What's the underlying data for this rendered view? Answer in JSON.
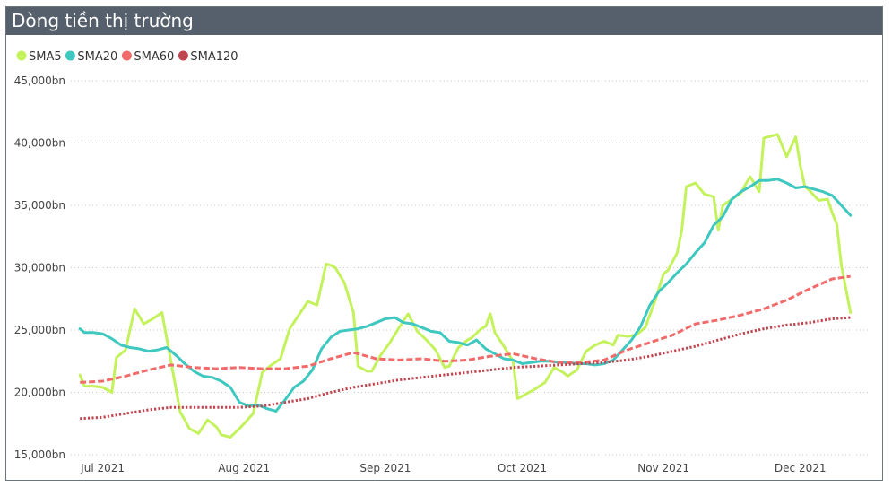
{
  "header": {
    "title": "Dòng tiền thị trường"
  },
  "chart_data": {
    "type": "line",
    "title": "Dòng tiền thị trường",
    "xlabel": "",
    "ylabel": "",
    "ylim": [
      15000,
      45000
    ],
    "y_ticks": [
      {
        "value": 15000,
        "label": "15,000bn"
      },
      {
        "value": 20000,
        "label": "20,000bn"
      },
      {
        "value": 25000,
        "label": "25,000bn"
      },
      {
        "value": 30000,
        "label": "30,000bn"
      },
      {
        "value": 35000,
        "label": "35,000bn"
      },
      {
        "value": 40000,
        "label": "40,000bn"
      },
      {
        "value": 45000,
        "label": "45,000bn"
      }
    ],
    "xlim": [
      "2021-06-24",
      "2021-12-16"
    ],
    "x_ticks": [
      {
        "value": "2021-07-01",
        "label": "Jul 2021"
      },
      {
        "value": "2021-08-01",
        "label": "Aug 2021"
      },
      {
        "value": "2021-09-01",
        "label": "Sep 2021"
      },
      {
        "value": "2021-10-01",
        "label": "Oct 2021"
      },
      {
        "value": "2021-11-01",
        "label": "Nov 2021"
      },
      {
        "value": "2021-12-01",
        "label": "Dec 2021"
      }
    ],
    "grid": "horizontal-dotted",
    "legend_position": "top-left",
    "series": [
      {
        "name": "SMA5",
        "color": "#c4f25c",
        "style": "solid",
        "x": [
          "2021-06-26",
          "2021-06-27",
          "2021-06-29",
          "2021-07-01",
          "2021-07-03",
          "2021-07-04",
          "2021-07-06",
          "2021-07-08",
          "2021-07-10",
          "2021-07-12",
          "2021-07-14",
          "2021-07-16",
          "2021-07-18",
          "2021-07-19",
          "2021-07-20",
          "2021-07-22",
          "2021-07-24",
          "2021-07-26",
          "2021-07-27",
          "2021-07-29",
          "2021-07-31",
          "2021-08-01",
          "2021-08-03",
          "2021-08-05",
          "2021-08-07",
          "2021-08-09",
          "2021-08-11",
          "2021-08-13",
          "2021-08-15",
          "2021-08-17",
          "2021-08-19",
          "2021-08-20",
          "2021-08-21",
          "2021-08-23",
          "2021-08-25",
          "2021-08-26",
          "2021-08-28",
          "2021-08-29",
          "2021-08-31",
          "2021-09-02",
          "2021-09-04",
          "2021-09-06",
          "2021-09-08",
          "2021-09-10",
          "2021-09-12",
          "2021-09-14",
          "2021-09-15",
          "2021-09-17",
          "2021-09-19",
          "2021-09-20",
          "2021-09-22",
          "2021-09-23",
          "2021-09-24",
          "2021-09-25",
          "2021-09-27",
          "2021-09-29",
          "2021-09-30",
          "2021-10-02",
          "2021-10-04",
          "2021-10-06",
          "2021-10-08",
          "2021-10-10",
          "2021-10-11",
          "2021-10-13",
          "2021-10-15",
          "2021-10-17",
          "2021-10-19",
          "2021-10-21",
          "2021-10-22",
          "2021-10-24",
          "2021-10-26",
          "2021-10-28",
          "2021-10-30",
          "2021-11-01",
          "2021-11-02",
          "2021-11-04",
          "2021-11-05",
          "2021-11-06",
          "2021-11-08",
          "2021-11-10",
          "2021-11-12",
          "2021-11-13",
          "2021-11-14",
          "2021-11-16",
          "2021-11-18",
          "2021-11-19",
          "2021-11-20",
          "2021-11-22",
          "2021-11-23",
          "2021-11-24",
          "2021-11-25",
          "2021-11-26",
          "2021-11-28",
          "2021-11-30",
          "2021-12-01",
          "2021-12-02",
          "2021-12-03",
          "2021-12-05",
          "2021-12-07",
          "2021-12-08",
          "2021-12-09",
          "2021-12-10",
          "2021-12-11",
          "2021-12-12"
        ],
        "values": [
          21400,
          20500,
          20500,
          20400,
          20000,
          22800,
          23400,
          26700,
          25500,
          25900,
          26400,
          22400,
          18400,
          17800,
          17100,
          16700,
          17800,
          17200,
          16600,
          16400,
          17100,
          17500,
          18300,
          21600,
          22200,
          22700,
          25100,
          26200,
          27300,
          27000,
          30300,
          30200,
          30000,
          28800,
          26400,
          22100,
          21700,
          21700,
          23000,
          24000,
          25200,
          26300,
          24900,
          24200,
          23400,
          22000,
          22100,
          23600,
          24200,
          24400,
          25100,
          25300,
          26300,
          24800,
          23700,
          22500,
          19500,
          19900,
          20300,
          20800,
          22000,
          21600,
          21300,
          21800,
          23300,
          23800,
          24100,
          23800,
          24600,
          24500,
          24600,
          25200,
          27200,
          29500,
          29800,
          31200,
          33000,
          36500,
          36800,
          35900,
          35700,
          33000,
          35000,
          35500,
          36000,
          36700,
          37300,
          36100,
          40400,
          40500,
          40600,
          40700,
          38900,
          40500,
          38200,
          36500,
          36200,
          35400,
          35500,
          34400,
          33500,
          30200,
          28300,
          26400
        ]
      },
      {
        "name": "SMA20",
        "color": "#3ec8c0",
        "style": "solid",
        "x": [
          "2021-06-26",
          "2021-06-27",
          "2021-06-29",
          "2021-07-01",
          "2021-07-03",
          "2021-07-05",
          "2021-07-07",
          "2021-07-09",
          "2021-07-11",
          "2021-07-13",
          "2021-07-15",
          "2021-07-17",
          "2021-07-19",
          "2021-07-21",
          "2021-07-23",
          "2021-07-25",
          "2021-07-27",
          "2021-07-29",
          "2021-07-31",
          "2021-08-02",
          "2021-08-04",
          "2021-08-06",
          "2021-08-08",
          "2021-08-10",
          "2021-08-12",
          "2021-08-14",
          "2021-08-16",
          "2021-08-18",
          "2021-08-20",
          "2021-08-22",
          "2021-08-24",
          "2021-08-26",
          "2021-08-28",
          "2021-08-30",
          "2021-09-01",
          "2021-09-03",
          "2021-09-05",
          "2021-09-07",
          "2021-09-09",
          "2021-09-11",
          "2021-09-13",
          "2021-09-15",
          "2021-09-17",
          "2021-09-19",
          "2021-09-21",
          "2021-09-23",
          "2021-09-25",
          "2021-09-27",
          "2021-09-29",
          "2021-10-01",
          "2021-10-03",
          "2021-10-05",
          "2021-10-07",
          "2021-10-09",
          "2021-10-11",
          "2021-10-13",
          "2021-10-15",
          "2021-10-17",
          "2021-10-19",
          "2021-10-21",
          "2021-10-23",
          "2021-10-25",
          "2021-10-27",
          "2021-10-29",
          "2021-10-31",
          "2021-11-02",
          "2021-11-04",
          "2021-11-06",
          "2021-11-08",
          "2021-11-10",
          "2021-11-12",
          "2021-11-14",
          "2021-11-16",
          "2021-11-18",
          "2021-11-20",
          "2021-11-22",
          "2021-11-24",
          "2021-11-26",
          "2021-11-28",
          "2021-11-30",
          "2021-12-02",
          "2021-12-04",
          "2021-12-06",
          "2021-12-08",
          "2021-12-10",
          "2021-12-12"
        ],
        "values": [
          25100,
          24800,
          24800,
          24700,
          24300,
          23800,
          23600,
          23500,
          23300,
          23400,
          23600,
          23000,
          22300,
          21700,
          21300,
          21200,
          20900,
          20400,
          19200,
          18900,
          19000,
          18700,
          18500,
          19400,
          20400,
          20900,
          21800,
          23500,
          24400,
          24900,
          25000,
          25100,
          25300,
          25600,
          25900,
          26000,
          25600,
          25500,
          25200,
          24900,
          24800,
          24100,
          24000,
          23800,
          24200,
          23500,
          23100,
          22700,
          22600,
          22300,
          22400,
          22500,
          22500,
          22400,
          22400,
          22300,
          22300,
          22200,
          22300,
          22600,
          23400,
          24200,
          25300,
          27000,
          28100,
          28800,
          29600,
          30300,
          31200,
          32000,
          33400,
          34100,
          35500,
          36100,
          36500,
          37000,
          37000,
          37100,
          36800,
          36400,
          36500,
          36300,
          36100,
          35800,
          35000,
          34200
        ]
      },
      {
        "name": "SMA60",
        "color": "#f26b6b",
        "style": "dashed",
        "x": [
          "2021-06-26",
          "2021-07-01",
          "2021-07-06",
          "2021-07-11",
          "2021-07-16",
          "2021-07-21",
          "2021-07-26",
          "2021-07-31",
          "2021-08-05",
          "2021-08-10",
          "2021-08-15",
          "2021-08-20",
          "2021-08-25",
          "2021-08-30",
          "2021-09-04",
          "2021-09-09",
          "2021-09-14",
          "2021-09-19",
          "2021-09-24",
          "2021-09-29",
          "2021-10-04",
          "2021-10-09",
          "2021-10-14",
          "2021-10-19",
          "2021-10-24",
          "2021-10-29",
          "2021-11-03",
          "2021-11-08",
          "2021-11-13",
          "2021-11-18",
          "2021-11-23",
          "2021-11-28",
          "2021-12-03",
          "2021-12-08",
          "2021-12-12"
        ],
        "values": [
          20800,
          20900,
          21300,
          21800,
          22200,
          22000,
          21900,
          22000,
          21900,
          21900,
          22100,
          22700,
          23200,
          22700,
          22600,
          22700,
          22500,
          22600,
          22900,
          23100,
          22700,
          22400,
          22400,
          22600,
          23400,
          24000,
          24600,
          25500,
          25800,
          26200,
          26700,
          27400,
          28300,
          29100,
          29300
        ]
      },
      {
        "name": "SMA120",
        "color": "#c0454f",
        "style": "dotted",
        "x": [
          "2021-06-26",
          "2021-07-01",
          "2021-07-06",
          "2021-07-11",
          "2021-07-16",
          "2021-07-21",
          "2021-07-26",
          "2021-07-31",
          "2021-08-05",
          "2021-08-10",
          "2021-08-15",
          "2021-08-20",
          "2021-08-25",
          "2021-08-30",
          "2021-09-04",
          "2021-09-09",
          "2021-09-14",
          "2021-09-19",
          "2021-09-24",
          "2021-09-29",
          "2021-10-04",
          "2021-10-09",
          "2021-10-14",
          "2021-10-19",
          "2021-10-24",
          "2021-10-29",
          "2021-11-03",
          "2021-11-08",
          "2021-11-13",
          "2021-11-18",
          "2021-11-23",
          "2021-11-28",
          "2021-12-03",
          "2021-12-08",
          "2021-12-12"
        ],
        "values": [
          17900,
          18000,
          18300,
          18600,
          18800,
          18800,
          18800,
          18800,
          18900,
          19200,
          19500,
          20000,
          20400,
          20700,
          21000,
          21200,
          21400,
          21600,
          21800,
          22000,
          22100,
          22200,
          22300,
          22400,
          22600,
          22900,
          23300,
          23700,
          24200,
          24700,
          25100,
          25400,
          25600,
          25900,
          26000
        ]
      }
    ]
  }
}
